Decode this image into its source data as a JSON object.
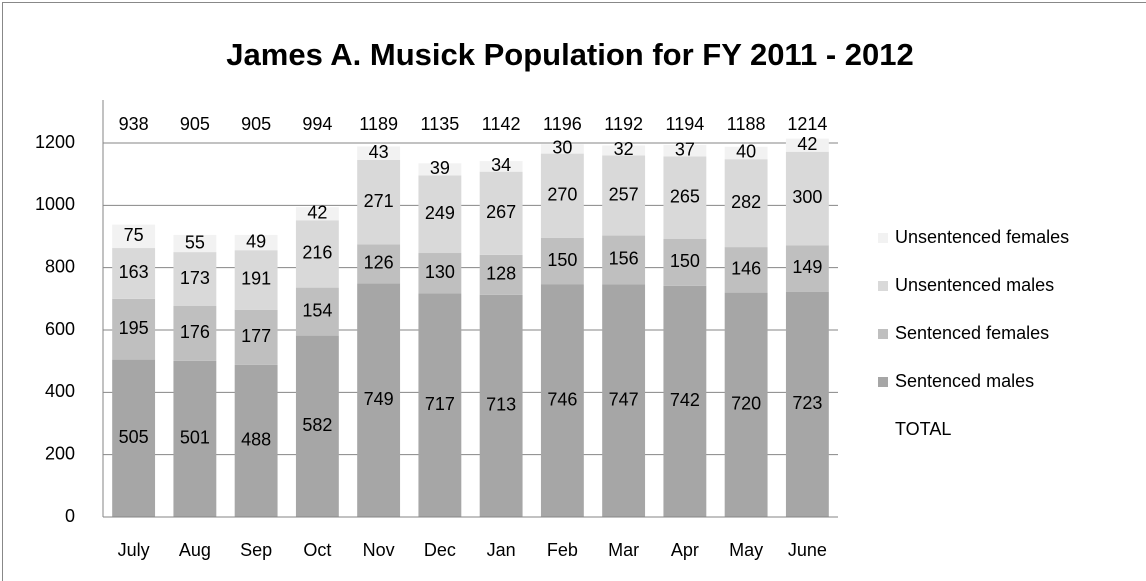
{
  "chart_data": {
    "type": "stacked_bar",
    "title": "James A. Musick Population for FY 2011 - 2012",
    "categories": [
      "July",
      "Aug",
      "Sep",
      "Oct",
      "Nov",
      "Dec",
      "Jan",
      "Feb",
      "Mar",
      "Apr",
      "May",
      "June"
    ],
    "series": [
      {
        "name": "Sentenced males",
        "color": "#a6a6a6",
        "values": [
          505,
          501,
          488,
          582,
          749,
          717,
          713,
          746,
          747,
          742,
          720,
          723
        ]
      },
      {
        "name": "Sentenced females",
        "color": "#bfbfbf",
        "values": [
          195,
          176,
          177,
          154,
          126,
          130,
          128,
          150,
          156,
          150,
          146,
          149
        ]
      },
      {
        "name": "Unsentenced males",
        "color": "#d9d9d9",
        "values": [
          163,
          173,
          191,
          216,
          271,
          249,
          267,
          270,
          257,
          265,
          282,
          300
        ]
      },
      {
        "name": "Unsentenced females",
        "color": "#f2f2f2",
        "values": [
          75,
          55,
          49,
          42,
          43,
          39,
          34,
          30,
          32,
          37,
          40,
          42
        ]
      },
      {
        "name": "TOTAL",
        "color": "none",
        "values": [
          938,
          905,
          905,
          994,
          1189,
          1135,
          1142,
          1196,
          1192,
          1194,
          1188,
          1214
        ]
      }
    ],
    "ylim": [
      0,
      1200
    ],
    "yticks": [
      0,
      200,
      400,
      600,
      800,
      1000,
      1200
    ],
    "grid": true,
    "legend": "right"
  }
}
